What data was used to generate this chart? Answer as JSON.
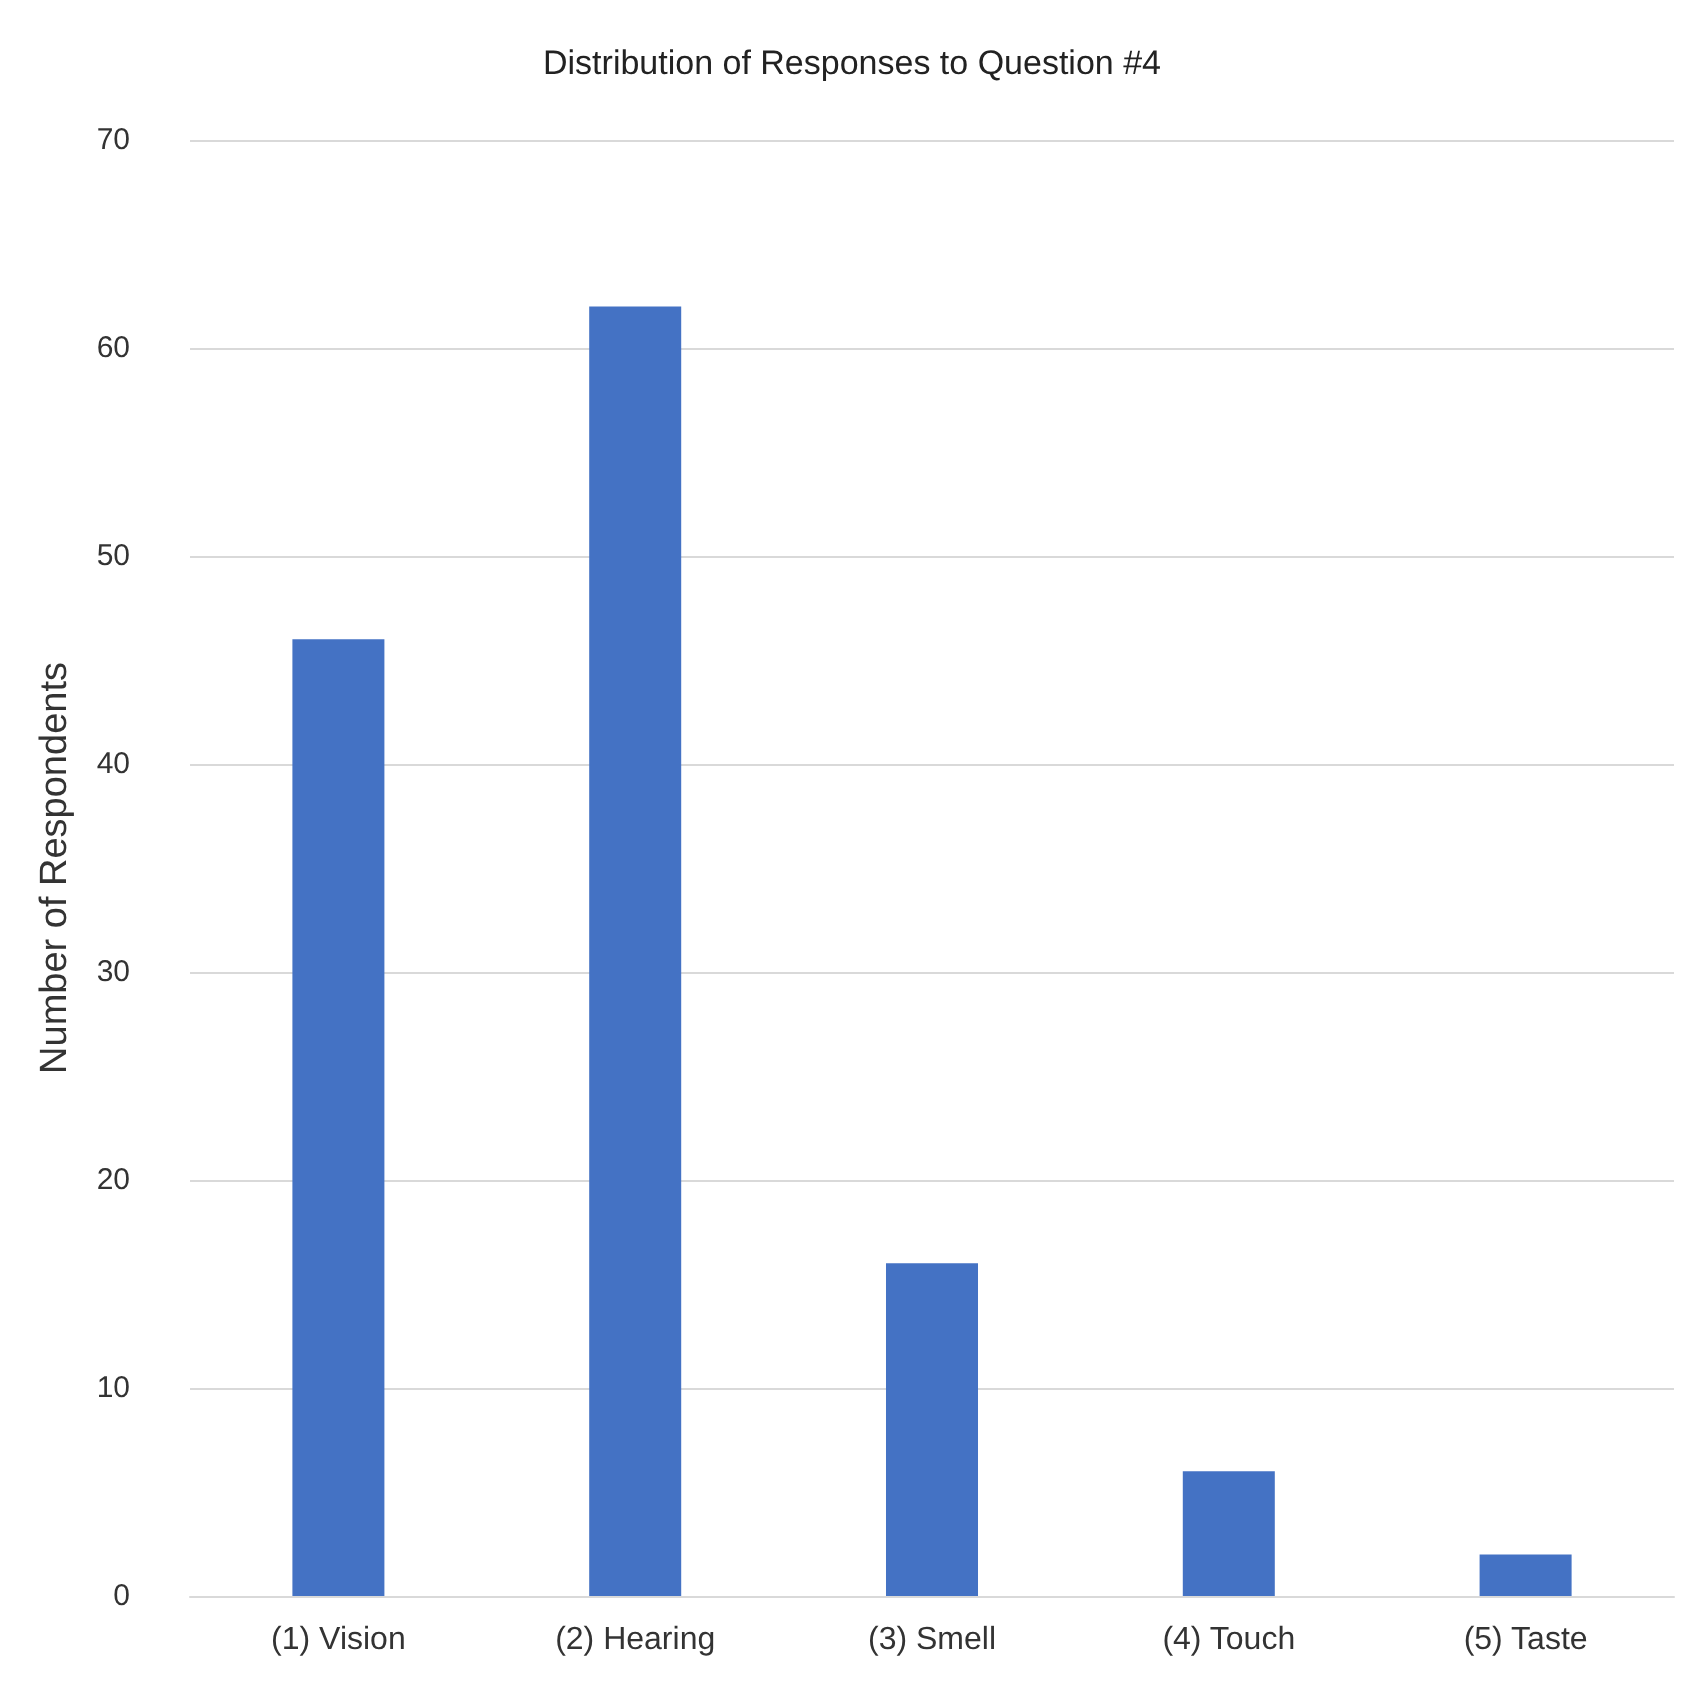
{
  "chart_data": {
    "type": "bar",
    "title": "Distribution of Responses to Question #4",
    "ylabel": "Number of Respondents",
    "categories": [
      "(1) Vision",
      "(2) Hearing",
      "(3) Smell",
      "(4) Touch",
      "(5) Taste"
    ],
    "values": [
      46,
      62,
      16,
      6,
      2
    ],
    "color": "#4472c4",
    "ylim": [
      0,
      70
    ],
    "yticks": [
      0,
      10,
      20,
      30,
      40,
      50,
      60,
      70
    ],
    "grid": "y"
  }
}
